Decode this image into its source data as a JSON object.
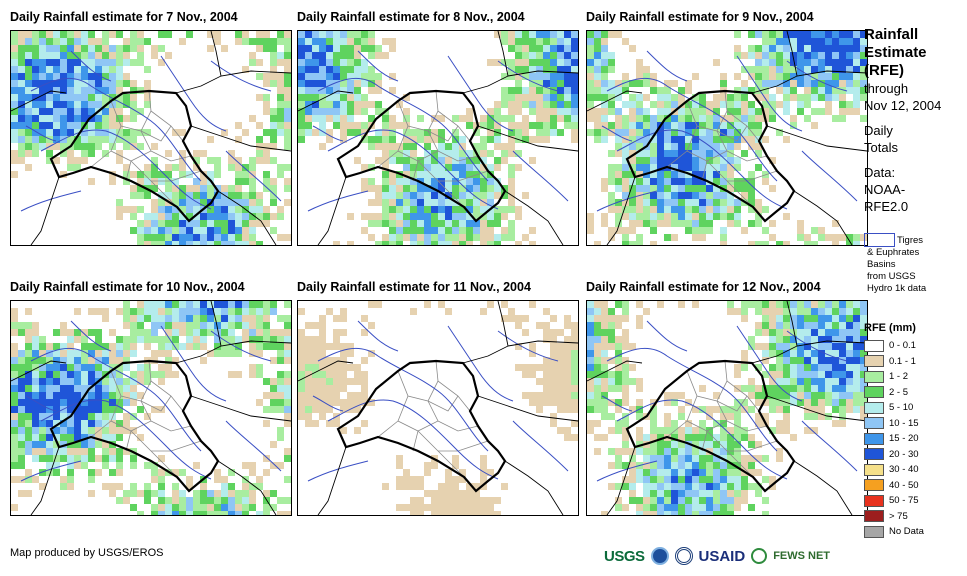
{
  "panels": [
    {
      "title": "Daily Rainfall estimate for 7 Nov., 2004",
      "seed": 7,
      "intensity": 0.85
    },
    {
      "title": "Daily Rainfall estimate for 8 Nov., 2004",
      "seed": 8,
      "intensity": 0.8
    },
    {
      "title": "Daily Rainfall estimate for 9 Nov., 2004",
      "seed": 9,
      "intensity": 0.95
    },
    {
      "title": "Daily Rainfall estimate for 10 Nov., 2004",
      "seed": 10,
      "intensity": 0.9
    },
    {
      "title": "Daily Rainfall estimate for 11 Nov., 2004",
      "seed": 11,
      "intensity": 0.2
    },
    {
      "title": "Daily Rainfall estimate for 12 Nov., 2004",
      "seed": 12,
      "intensity": 0.75
    }
  ],
  "side": {
    "title_lines": [
      "Rainfall",
      "Estimate",
      "(RFE)"
    ],
    "through": "through",
    "date": "Nov 12, 2004",
    "daily": "Daily",
    "totals": "Totals",
    "data_label": "Data:",
    "source_1": "NOAA-",
    "source_2": "RFE2.0"
  },
  "basin_key": {
    "line1": "Tigres",
    "line2": "& Euphrates",
    "line3": "Basins",
    "line4": "from USGS",
    "line5": "Hydro 1k data",
    "border_color": "#3a4fc4"
  },
  "legend": {
    "title": "RFE (mm)",
    "items": [
      {
        "label": "0 - 0.1",
        "color": "#ffffff"
      },
      {
        "label": "0.1 - 1",
        "color": "#e6d2b0"
      },
      {
        "label": "1 - 2",
        "color": "#a8eda0"
      },
      {
        "label": "2 - 5",
        "color": "#5fd35f"
      },
      {
        "label": "5 - 10",
        "color": "#b4ecec"
      },
      {
        "label": "10 - 15",
        "color": "#8fc6f5"
      },
      {
        "label": "15 - 20",
        "color": "#3f96ea"
      },
      {
        "label": "20 - 30",
        "color": "#1f55d8"
      },
      {
        "label": "30 - 40",
        "color": "#f5e08a"
      },
      {
        "label": "40 - 50",
        "color": "#f5a020"
      },
      {
        "label": "50 - 75",
        "color": "#e8321e"
      },
      {
        "label": "> 75",
        "color": "#9c1e1e"
      },
      {
        "label": "No Data",
        "color": "#a6a6a6"
      }
    ]
  },
  "footer": {
    "credit": "Map produced by USGS/EROS",
    "usgs": "USGS",
    "usaid": "USAID",
    "fews": "FEWS NET"
  },
  "colors": {
    "river": "#3a4fc4",
    "border": "#000000",
    "province": "#8a8a8a"
  }
}
